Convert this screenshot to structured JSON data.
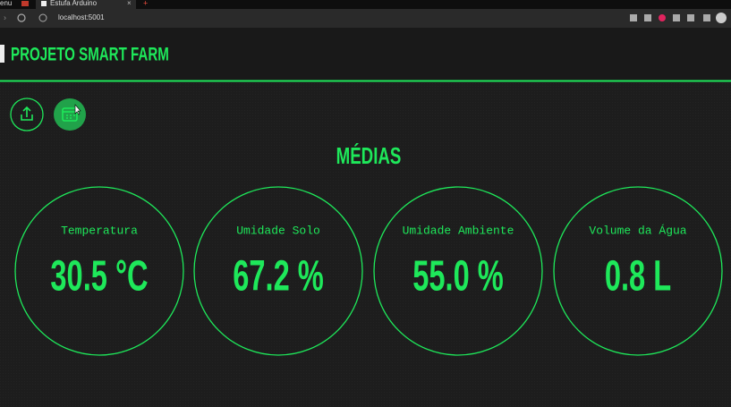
{
  "browser": {
    "tabs": [
      "enu",
      "Estufa Arduino"
    ],
    "url": "localhost:5001"
  },
  "header": {
    "title": "PROJETO SMART FARM"
  },
  "section": {
    "title": "MÉDIAS"
  },
  "cards": [
    {
      "label": "Temperatura",
      "value": "30.5 °C"
    },
    {
      "label": "Umidade Solo",
      "value": "67.2 %"
    },
    {
      "label": "Umidade Ambiente",
      "value": "55.0 %"
    },
    {
      "label": "Volume da Água",
      "value": "0.8 L"
    }
  ]
}
